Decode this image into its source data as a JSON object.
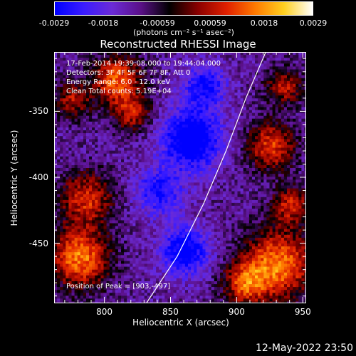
{
  "colorbar": {
    "ticks": [
      "-0.0029",
      "-0.0018",
      "-0.00059",
      "0.00059",
      "0.0018",
      "0.0029"
    ],
    "tick_values": [
      -0.0029,
      -0.0018,
      -0.00059,
      0.00059,
      0.0018,
      0.0029
    ],
    "range": [
      -0.0029,
      0.0029
    ],
    "units": "(photons cm⁻² s⁻¹ asec⁻²)",
    "colormap": [
      "#0000ff",
      "#3a1cff",
      "#6b2bd6",
      "#5a1088",
      "#000000",
      "#8a0000",
      "#e02000",
      "#ff7a00",
      "#ffd020",
      "#ffffff"
    ]
  },
  "chart_data": {
    "type": "heatmap",
    "title": "Reconstructed RHESSI Image",
    "xlabel": "Heliocentric X (arcsec)",
    "ylabel": "Heliocentric Y (arcsec)",
    "xlim": [
      762,
      952
    ],
    "ylim": [
      -495,
      -305
    ],
    "xticks": [
      800,
      850,
      900,
      950
    ],
    "yticks": [
      -350,
      -400,
      -450
    ],
    "annotations": {
      "time": "17-Feb-2014 19:39:08.000 to 19:44:04.000",
      "detectors": "Detectors: 3F 4F 5F 6F 7F 8F, Att 0",
      "energy": "Energy Range: 6.0 - 12.0 keV",
      "clean": "Clean    Total counts: 5.19E+04",
      "peak": "Position of Peak = [903,-497]"
    },
    "limb_curve": [
      [
        832,
        -495
      ],
      [
        855,
        -460
      ],
      [
        875,
        -420
      ],
      [
        892,
        -380
      ],
      [
        907,
        -340
      ],
      [
        922,
        -305
      ]
    ],
    "hot_regions": [
      {
        "x": 780,
        "y": -460,
        "r": 22,
        "level": 0.95
      },
      {
        "x": 785,
        "y": -415,
        "r": 20,
        "level": 0.7
      },
      {
        "x": 808,
        "y": -325,
        "r": 18,
        "level": 0.85
      },
      {
        "x": 820,
        "y": -350,
        "r": 14,
        "level": 0.6
      },
      {
        "x": 775,
        "y": -340,
        "r": 14,
        "level": 0.55
      },
      {
        "x": 930,
        "y": -465,
        "r": 26,
        "level": 0.95
      },
      {
        "x": 925,
        "y": -375,
        "r": 18,
        "level": 0.75
      },
      {
        "x": 905,
        "y": -480,
        "r": 16,
        "level": 0.7
      },
      {
        "x": 940,
        "y": -420,
        "r": 14,
        "level": 0.65
      },
      {
        "x": 935,
        "y": -330,
        "r": 14,
        "level": 0.6
      }
    ],
    "cold_regions": [
      {
        "x": 865,
        "y": -370,
        "r": 22,
        "level": -0.9
      },
      {
        "x": 860,
        "y": -455,
        "r": 18,
        "level": -0.75
      },
      {
        "x": 875,
        "y": -330,
        "r": 16,
        "level": -0.6
      },
      {
        "x": 840,
        "y": -410,
        "r": 18,
        "level": -0.55
      }
    ]
  },
  "footer": {
    "date": "12-May-2022 23:50"
  }
}
